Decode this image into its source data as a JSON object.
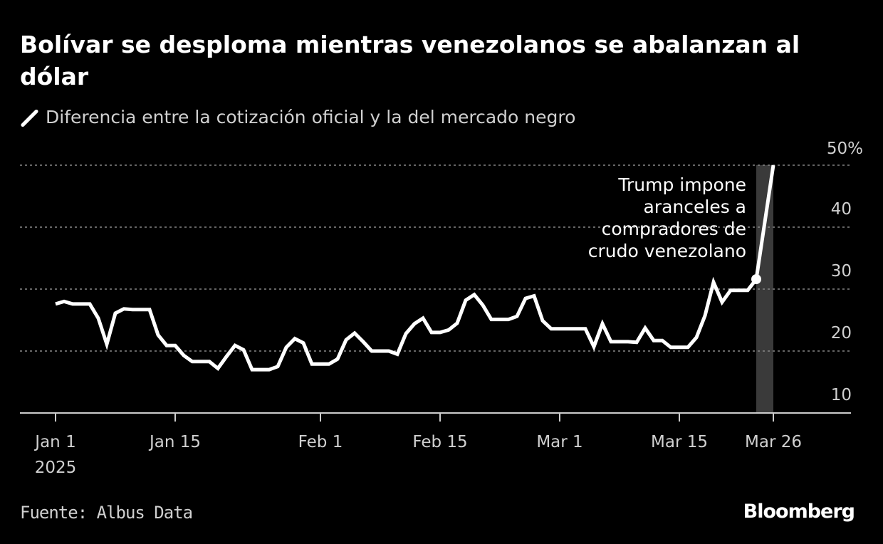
{
  "title": "Bolívar se desploma mientras venezolanos se abalanzan al dólar",
  "footer": {
    "source": "Fuente: Albus Data",
    "logo": "Bloomberg"
  },
  "chart_data": {
    "type": "line",
    "title": "Bolívar se desploma mientras venezolanos se abalanzan al dólar",
    "legend": [
      {
        "name": "Diferencia entre la cotización oficial y la del mercado negro",
        "icon": "slash-line-icon",
        "color": "#ffffff"
      }
    ],
    "series": [
      {
        "name": "Diferencia entre la cotización oficial y la del mercado negro",
        "color": "#ffffff",
        "points": [
          [
            "2025-01-01",
            27.6
          ],
          [
            "2025-01-02",
            28.0
          ],
          [
            "2025-01-03",
            27.6
          ],
          [
            "2025-01-05",
            27.6
          ],
          [
            "2025-01-06",
            25.3
          ],
          [
            "2025-01-07",
            21.1
          ],
          [
            "2025-01-08",
            26.1
          ],
          [
            "2025-01-09",
            26.8
          ],
          [
            "2025-01-10",
            26.7
          ],
          [
            "2025-01-12",
            26.7
          ],
          [
            "2025-01-13",
            22.6
          ],
          [
            "2025-01-14",
            20.9
          ],
          [
            "2025-01-15",
            20.9
          ],
          [
            "2025-01-16",
            19.3
          ],
          [
            "2025-01-17",
            18.3
          ],
          [
            "2025-01-19",
            18.3
          ],
          [
            "2025-01-20",
            17.2
          ],
          [
            "2025-01-21",
            19.1
          ],
          [
            "2025-01-22",
            20.9
          ],
          [
            "2025-01-23",
            20.2
          ],
          [
            "2025-01-24",
            17.0
          ],
          [
            "2025-01-26",
            17.0
          ],
          [
            "2025-01-27",
            17.5
          ],
          [
            "2025-01-28",
            20.6
          ],
          [
            "2025-01-29",
            22.0
          ],
          [
            "2025-01-30",
            21.3
          ],
          [
            "2025-01-31",
            17.9
          ],
          [
            "2025-02-02",
            17.9
          ],
          [
            "2025-02-03",
            18.7
          ],
          [
            "2025-02-04",
            21.8
          ],
          [
            "2025-02-05",
            22.9
          ],
          [
            "2025-02-06",
            21.5
          ],
          [
            "2025-02-07",
            20.0
          ],
          [
            "2025-02-09",
            20.0
          ],
          [
            "2025-02-10",
            19.5
          ],
          [
            "2025-02-11",
            22.8
          ],
          [
            "2025-02-12",
            24.4
          ],
          [
            "2025-02-13",
            25.3
          ],
          [
            "2025-02-14",
            23.0
          ],
          [
            "2025-02-15",
            23.0
          ],
          [
            "2025-02-16",
            23.4
          ],
          [
            "2025-02-17",
            24.5
          ],
          [
            "2025-02-18",
            28.2
          ],
          [
            "2025-02-19",
            29.1
          ],
          [
            "2025-02-20",
            27.4
          ],
          [
            "2025-02-21",
            25.1
          ],
          [
            "2025-02-23",
            25.1
          ],
          [
            "2025-02-24",
            25.6
          ],
          [
            "2025-02-25",
            28.5
          ],
          [
            "2025-02-26",
            28.9
          ],
          [
            "2025-02-27",
            24.9
          ],
          [
            "2025-02-28",
            23.6
          ],
          [
            "2025-03-04",
            23.6
          ],
          [
            "2025-03-05",
            20.7
          ],
          [
            "2025-03-06",
            24.4
          ],
          [
            "2025-03-07",
            21.5
          ],
          [
            "2025-03-09",
            21.5
          ],
          [
            "2025-03-10",
            21.4
          ],
          [
            "2025-03-11",
            23.7
          ],
          [
            "2025-03-12",
            21.7
          ],
          [
            "2025-03-13",
            21.7
          ],
          [
            "2025-03-14",
            20.6
          ],
          [
            "2025-03-16",
            20.6
          ],
          [
            "2025-03-17",
            22.2
          ],
          [
            "2025-03-18",
            25.7
          ],
          [
            "2025-03-19",
            31.1
          ],
          [
            "2025-03-20",
            27.9
          ],
          [
            "2025-03-21",
            29.8
          ],
          [
            "2025-03-23",
            29.8
          ],
          [
            "2025-03-24",
            31.6
          ],
          [
            "2025-03-26",
            50.0
          ]
        ]
      }
    ],
    "xlim": [
      "2025-01-01",
      "2025-04-04"
    ],
    "ylim": [
      10,
      50
    ],
    "y_ticks": [
      {
        "value": 10,
        "label": "10"
      },
      {
        "value": 20,
        "label": "20"
      },
      {
        "value": 30,
        "label": "30"
      },
      {
        "value": 40,
        "label": "40"
      },
      {
        "value": 50,
        "label": "50%"
      }
    ],
    "x_ticks": [
      {
        "date": "2025-01-01",
        "label": "Jan 1",
        "sublabel": "2025"
      },
      {
        "date": "2025-01-15",
        "label": "Jan 15"
      },
      {
        "date": "2025-02-01",
        "label": "Feb 1"
      },
      {
        "date": "2025-02-15",
        "label": "Feb 15"
      },
      {
        "date": "2025-03-01",
        "label": "Mar 1"
      },
      {
        "date": "2025-03-15",
        "label": "Mar 15"
      },
      {
        "date": "2025-03-26",
        "label": "Mar 26"
      }
    ],
    "grid": "horizontal dotted",
    "highlight_band": {
      "from": "2025-03-24",
      "to": "2025-03-26",
      "color": "#3a3a3a"
    },
    "annotation": {
      "date": "2025-03-24",
      "value": 31.6,
      "lines": [
        "Trump impone",
        "aranceles a",
        "compradores de",
        "crudo venezolano"
      ]
    }
  }
}
